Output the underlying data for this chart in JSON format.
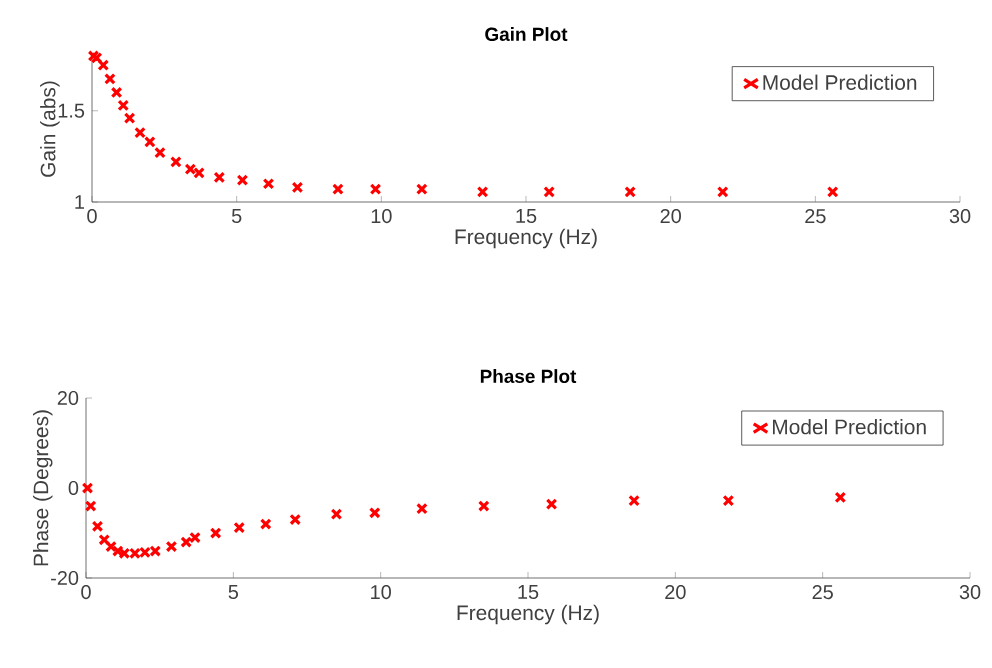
{
  "chart_data": [
    {
      "type": "scatter",
      "title": "Gain Plot",
      "xlabel": "Frequency (Hz)",
      "ylabel": "Gain (abs)",
      "x": [
        0.05,
        0.16,
        0.39,
        0.62,
        0.85,
        1.08,
        1.3,
        1.66,
        2.0,
        2.35,
        2.9,
        3.4,
        3.7,
        4.4,
        5.2,
        6.1,
        7.1,
        8.5,
        9.8,
        11.4,
        13.5,
        15.8,
        18.6,
        21.8,
        25.6
      ],
      "series": [
        {
          "name": "Model Prediction",
          "color": "#ff0000",
          "values": [
            1.8,
            1.79,
            1.75,
            1.675,
            1.6,
            1.53,
            1.46,
            1.38,
            1.33,
            1.27,
            1.22,
            1.18,
            1.16,
            1.135,
            1.12,
            1.1,
            1.08,
            1.07,
            1.07,
            1.07,
            1.055,
            1.055,
            1.055,
            1.055,
            1.055
          ]
        }
      ],
      "marker": "cross",
      "legend": "top right",
      "xlim": [
        0,
        30
      ],
      "ylim": [
        1,
        1.8
      ],
      "xticks": [
        0,
        5,
        10,
        15,
        20,
        25,
        30
      ],
      "yticks": [
        1,
        1.5
      ]
    },
    {
      "type": "scatter",
      "title": "Phase Plot",
      "xlabel": "Frequency (Hz)",
      "ylabel": "Phase (Degrees)",
      "x": [
        0.05,
        0.16,
        0.39,
        0.62,
        0.85,
        1.08,
        1.3,
        1.66,
        2.0,
        2.35,
        2.9,
        3.4,
        3.7,
        4.4,
        5.2,
        6.1,
        7.1,
        8.5,
        9.8,
        11.4,
        13.5,
        15.8,
        18.6,
        21.8,
        25.6
      ],
      "series": [
        {
          "name": "Model Prediction",
          "color": "#ff0000",
          "values": [
            0,
            -4,
            -8.5,
            -11.5,
            -13,
            -14,
            -14.5,
            -14.5,
            -14.3,
            -14,
            -13,
            -12,
            -11,
            -10,
            -8.8,
            -8,
            -7,
            -5.8,
            -5.5,
            -4.6,
            -4,
            -3.6,
            -2.8,
            -2.8,
            -2.1
          ]
        }
      ],
      "marker": "cross",
      "legend": "top right",
      "xlim": [
        0,
        30
      ],
      "ylim": [
        -20,
        20
      ],
      "xticks": [
        0,
        5,
        10,
        15,
        20,
        25,
        30
      ],
      "yticks": [
        -20,
        0,
        20
      ]
    }
  ]
}
